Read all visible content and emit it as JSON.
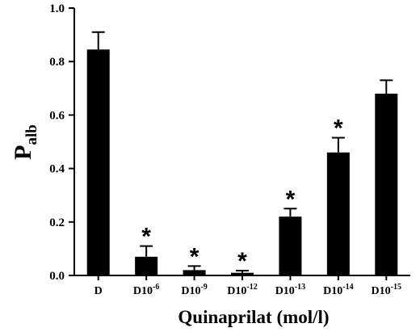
{
  "chart_data": {
    "type": "bar",
    "categories": [
      {
        "base": "D",
        "exp": ""
      },
      {
        "base": "D10",
        "exp": "-6"
      },
      {
        "base": "D10",
        "exp": "-9"
      },
      {
        "base": "D10",
        "exp": "-12"
      },
      {
        "base": "D10",
        "exp": "-13"
      },
      {
        "base": "D10",
        "exp": "-14"
      },
      {
        "base": "D10",
        "exp": "-15"
      }
    ],
    "values": [
      0.845,
      0.07,
      0.02,
      0.01,
      0.22,
      0.46,
      0.68
    ],
    "errors": [
      0.065,
      0.04,
      0.015,
      0.008,
      0.03,
      0.055,
      0.05
    ],
    "significant": [
      false,
      true,
      true,
      true,
      true,
      true,
      false
    ],
    "significance_marker": "*",
    "xlabel": "Quinaprilat (mol/l)",
    "ylabel": {
      "main": "P",
      "sub": "alb"
    },
    "ylim": [
      0,
      1.0
    ],
    "yticks": [
      "0.0",
      "0.2",
      "0.4",
      "0.6",
      "0.8",
      "1.0"
    ],
    "ytick_values": [
      0,
      0.2,
      0.4,
      0.6,
      0.8,
      1.0
    ],
    "bar_color": "#000000"
  }
}
